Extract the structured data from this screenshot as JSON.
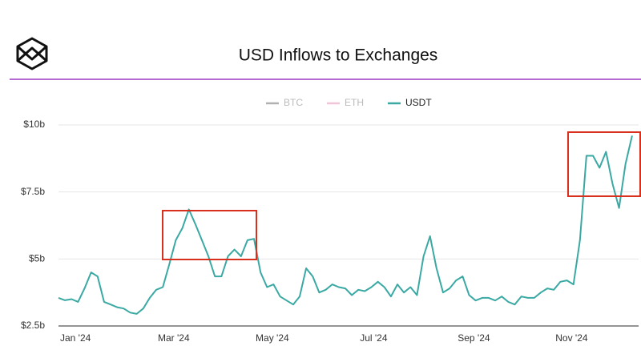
{
  "chart_data": {
    "type": "line",
    "title": "USD Inflows to Exchanges",
    "categories": [
      "Jan '24",
      null,
      null,
      null,
      null,
      null,
      null,
      null,
      null,
      null,
      null,
      null,
      null,
      null,
      null,
      "Mar '24",
      null,
      null,
      null,
      null,
      null,
      null,
      null,
      null,
      null,
      null,
      null,
      null,
      null,
      null,
      "May '24",
      null,
      null,
      null,
      null,
      null,
      null,
      null,
      null,
      null,
      null,
      null,
      null,
      null,
      null,
      null,
      "Jul '24",
      null,
      null,
      null,
      null,
      null,
      null,
      null,
      null,
      null,
      null,
      null,
      null,
      null,
      null,
      "Sep '24",
      null,
      null,
      null,
      null,
      null,
      null,
      null,
      null,
      null,
      null,
      null,
      null,
      null,
      null,
      "Nov '24",
      null,
      null,
      null,
      null,
      null,
      null,
      null,
      null,
      null,
      null,
      null,
      null
    ],
    "series": [
      {
        "name": "BTC",
        "color": "#b0b0b0",
        "visible": false
      },
      {
        "name": "ETH",
        "color": "#f2c4d8",
        "visible": false
      },
      {
        "name": "USDT",
        "color": "#3aa9a3",
        "visible": true,
        "values": [
          3.55,
          3.46,
          3.5,
          3.4,
          3.9,
          4.5,
          4.35,
          3.4,
          3.3,
          3.2,
          3.15,
          3.0,
          2.95,
          3.15,
          3.55,
          3.85,
          3.95,
          4.8,
          5.7,
          6.15,
          6.85,
          6.3,
          5.7,
          5.1,
          4.35,
          4.35,
          5.1,
          5.35,
          5.1,
          5.7,
          5.75,
          4.5,
          3.95,
          4.05,
          3.6,
          3.45,
          3.3,
          3.6,
          4.65,
          4.35,
          3.75,
          3.85,
          4.05,
          3.95,
          3.9,
          3.65,
          3.85,
          3.8,
          3.95,
          4.15,
          3.95,
          3.6,
          4.05,
          3.75,
          3.95,
          3.65,
          5.1,
          5.85,
          4.65,
          3.75,
          3.9,
          4.2,
          4.35,
          3.65,
          3.45,
          3.55,
          3.55,
          3.45,
          3.6,
          3.4,
          3.3,
          3.6,
          3.55,
          3.55,
          3.75,
          3.9,
          3.85,
          4.15,
          4.2,
          4.05,
          5.7,
          8.85,
          8.85,
          8.4,
          9.0,
          7.8,
          6.9,
          8.55,
          9.6
        ]
      }
    ],
    "ylim": [
      2.5,
      10
    ],
    "yticks": [
      {
        "value": 2.5,
        "label": "$2.5b"
      },
      {
        "value": 5,
        "label": "$5b"
      },
      {
        "value": 7.5,
        "label": "$7.5b"
      },
      {
        "value": 10,
        "label": "$10b"
      }
    ],
    "grid": true
  }
}
